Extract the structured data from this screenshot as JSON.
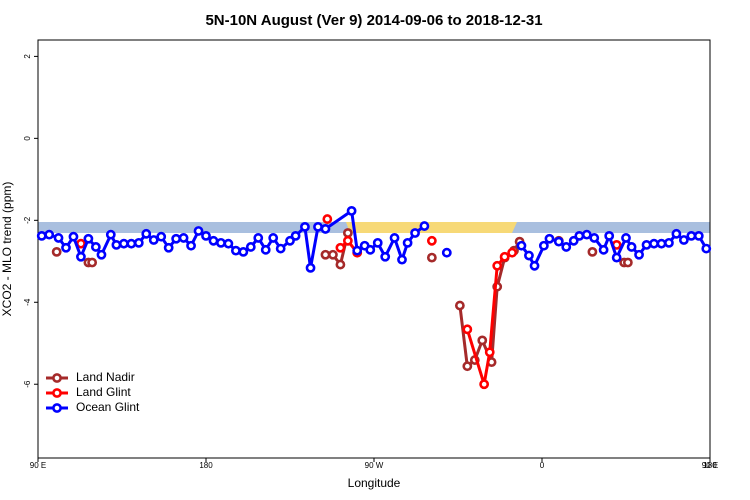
{
  "chart_data": {
    "type": "line",
    "title": "5N-10N August (Ver 9)   2014-09-06 to 2018-12-31",
    "x_label": "Longitude",
    "y_label": "XCO2 - MLO trend (ppm)",
    "xlim": [
      90,
      450
    ],
    "ylim": [
      -7.8,
      2.4
    ],
    "xticks": [
      {
        "value": 90,
        "label": "90 E"
      },
      180,
      {
        "value": 270,
        "label": "90 W"
      },
      {
        "value": 360,
        "label": "0"
      },
      {
        "value": 450,
        "label": "90 E"
      },
      {
        "value": 540,
        "label": "180"
      }
    ],
    "yticks": [
      -6,
      -4,
      -2,
      0,
      2
    ],
    "legend": "bottom-left",
    "series": [
      {
        "name": "Land Nadir",
        "color": "#a52a2a",
        "x": [
          100,
          null,
          117,
          119,
          null,
          244,
          248,
          252,
          256,
          null,
          301,
          null,
          316,
          320,
          324,
          328,
          333,
          336,
          340,
          345,
          348,
          null,
          369,
          null,
          387,
          null,
          404,
          406
        ],
        "values": [
          -2.77,
          null,
          -3.03,
          -3.03,
          null,
          -2.84,
          -2.84,
          -3.08,
          -2.31,
          null,
          -2.91,
          null,
          -4.08,
          -5.56,
          -5.41,
          -4.93,
          -5.46,
          -3.62,
          -2.91,
          -2.74,
          -2.52,
          null,
          -2.5,
          null,
          -2.77,
          null,
          -3.03,
          -3.03
        ]
      },
      {
        "name": "Land Glint",
        "color": "#ff0000",
        "x": [
          113,
          null,
          245,
          null,
          252,
          256,
          261,
          null,
          301,
          null,
          320,
          329,
          332,
          336,
          340,
          344,
          null,
          400
        ],
        "values": [
          -2.57,
          null,
          -1.97,
          null,
          -2.67,
          -2.5,
          -2.79,
          null,
          -2.5,
          null,
          -4.66,
          -6.0,
          -5.22,
          -3.11,
          -2.89,
          -2.79,
          null,
          -2.6
        ]
      },
      {
        "name": "Ocean Glint",
        "color": "#0000ff",
        "x": [
          92,
          96,
          101,
          105,
          109,
          113,
          117,
          121,
          124,
          129,
          132,
          136,
          140,
          144,
          148,
          152,
          156,
          160,
          164,
          168,
          172,
          176,
          180,
          184,
          188,
          192,
          196,
          200,
          204,
          208,
          212,
          216,
          220,
          225,
          228,
          233,
          236,
          240,
          244,
          258,
          261,
          265,
          268,
          272,
          276,
          281,
          285,
          288,
          292,
          297,
          null,
          309,
          null,
          349,
          353,
          356,
          361,
          364,
          369,
          373,
          377,
          380,
          384,
          388,
          393,
          396,
          400,
          405,
          408,
          412,
          416,
          420,
          424,
          428,
          432,
          436,
          440,
          444,
          448
        ],
        "values": [
          -2.38,
          -2.35,
          -2.43,
          -2.67,
          -2.4,
          -2.89,
          -2.45,
          -2.65,
          -2.84,
          -2.35,
          -2.6,
          -2.57,
          -2.57,
          -2.55,
          -2.33,
          -2.48,
          -2.4,
          -2.67,
          -2.45,
          -2.43,
          -2.62,
          -2.26,
          -2.38,
          -2.5,
          -2.55,
          -2.57,
          -2.74,
          -2.77,
          -2.65,
          -2.43,
          -2.72,
          -2.43,
          -2.69,
          -2.5,
          -2.38,
          -2.16,
          -3.16,
          -2.16,
          -2.21,
          -1.77,
          -2.74,
          -2.62,
          -2.72,
          -2.55,
          -2.89,
          -2.43,
          -2.96,
          -2.55,
          -2.31,
          -2.14,
          null,
          -2.79,
          null,
          -2.62,
          -2.86,
          -3.11,
          -2.62,
          -2.45,
          -2.52,
          -2.65,
          -2.5,
          -2.38,
          -2.35,
          -2.43,
          -2.72,
          -2.38,
          -2.91,
          -2.43,
          -2.65,
          -2.84,
          -2.6,
          -2.57,
          -2.57,
          -2.55,
          -2.33,
          -2.48,
          -2.38,
          -2.38,
          -2.69
        ]
      }
    ]
  }
}
